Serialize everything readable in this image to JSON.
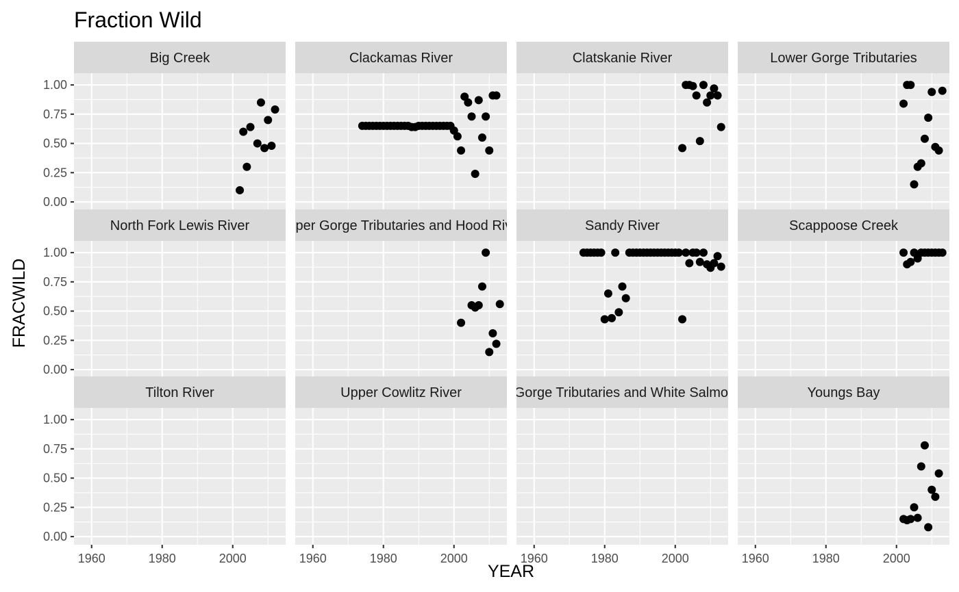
{
  "chart_data": {
    "type": "scatter",
    "title": "Fraction Wild",
    "xlabel": "YEAR",
    "ylabel": "FRACWILD",
    "xlim": [
      1955,
      2015
    ],
    "ylim": [
      0,
      1
    ],
    "x_ticks": [
      1960,
      1980,
      2000
    ],
    "y_ticks": [
      0.0,
      0.25,
      0.5,
      0.75,
      1.0
    ],
    "x_tick_labels": [
      "1960",
      "1980",
      "2000"
    ],
    "y_tick_labels": [
      "0.00",
      "0.25",
      "0.50",
      "0.75",
      "1.00"
    ],
    "grid": true,
    "facets": [
      {
        "name": "Big Creek",
        "x": [
          2002,
          2003,
          2004,
          2005,
          2007,
          2008,
          2009,
          2010,
          2011,
          2012
        ],
        "y": [
          0.1,
          0.6,
          0.3,
          0.64,
          0.5,
          0.85,
          0.46,
          0.7,
          0.48,
          0.79
        ]
      },
      {
        "name": "Clackamas River",
        "x": [
          1974,
          1975,
          1976,
          1977,
          1978,
          1979,
          1980,
          1981,
          1982,
          1983,
          1984,
          1985,
          1986,
          1987,
          1988,
          1989,
          1990,
          1991,
          1992,
          1993,
          1994,
          1995,
          1996,
          1997,
          1998,
          1999,
          2000,
          2001,
          2002,
          2003,
          2004,
          2005,
          2006,
          2007,
          2008,
          2009,
          2010,
          2011,
          2012
        ],
        "y": [
          0.65,
          0.65,
          0.65,
          0.65,
          0.65,
          0.65,
          0.65,
          0.65,
          0.65,
          0.65,
          0.65,
          0.65,
          0.65,
          0.65,
          0.64,
          0.64,
          0.65,
          0.65,
          0.65,
          0.65,
          0.65,
          0.65,
          0.65,
          0.65,
          0.65,
          0.65,
          0.61,
          0.56,
          0.44,
          0.9,
          0.85,
          0.73,
          0.24,
          0.87,
          0.55,
          0.73,
          0.44,
          0.91,
          0.91
        ]
      },
      {
        "name": "Clatskanie River",
        "x": [
          2002,
          2003,
          2004,
          2005,
          2006,
          2007,
          2008,
          2009,
          2010,
          2011,
          2012,
          2013
        ],
        "y": [
          0.46,
          1.0,
          1.0,
          0.99,
          0.91,
          0.52,
          1.0,
          0.85,
          0.91,
          0.97,
          0.91,
          0.64
        ]
      },
      {
        "name": "Lower Gorge Tributaries",
        "x": [
          2002,
          2003,
          2004,
          2005,
          2006,
          2007,
          2008,
          2009,
          2010,
          2011,
          2012,
          2013
        ],
        "y": [
          0.84,
          1.0,
          1.0,
          0.15,
          0.3,
          0.33,
          0.54,
          0.72,
          0.94,
          0.47,
          0.44,
          0.95
        ]
      },
      {
        "name": "North Fork Lewis River",
        "x": [],
        "y": []
      },
      {
        "name": "Upper Gorge Tributaries and Hood River",
        "x": [
          2002,
          2005,
          2006,
          2007,
          2008,
          2009,
          2010,
          2011,
          2012,
          2013
        ],
        "y": [
          0.4,
          0.55,
          0.53,
          0.55,
          0.71,
          1.0,
          0.15,
          0.31,
          0.22,
          0.56
        ]
      },
      {
        "name": "Sandy River",
        "x": [
          1974,
          1975,
          1976,
          1977,
          1978,
          1979,
          1980,
          1981,
          1982,
          1983,
          1984,
          1985,
          1986,
          1987,
          1988,
          1989,
          1990,
          1991,
          1992,
          1993,
          1994,
          1995,
          1996,
          1997,
          1998,
          1999,
          2000,
          2001,
          2002,
          2003,
          2004,
          2005,
          2006,
          2007,
          2008,
          2009,
          2010,
          2011,
          2012,
          2013
        ],
        "y": [
          1.0,
          1.0,
          1.0,
          1.0,
          1.0,
          1.0,
          0.43,
          0.65,
          0.44,
          1.0,
          0.49,
          0.71,
          0.61,
          1.0,
          1.0,
          1.0,
          1.0,
          1.0,
          1.0,
          1.0,
          1.0,
          1.0,
          1.0,
          1.0,
          1.0,
          1.0,
          1.0,
          1.0,
          0.43,
          1.0,
          0.91,
          1.0,
          1.0,
          0.92,
          1.0,
          0.9,
          0.87,
          0.91,
          0.97,
          0.88
        ]
      },
      {
        "name": "Scappoose Creek",
        "x": [
          2002,
          2003,
          2004,
          2005,
          2006,
          2007,
          2008,
          2009,
          2010,
          2011,
          2012,
          2013
        ],
        "y": [
          1.0,
          0.9,
          0.92,
          1.0,
          0.95,
          1.0,
          1.0,
          1.0,
          1.0,
          1.0,
          1.0,
          1.0
        ]
      },
      {
        "name": "Tilton River",
        "x": [],
        "y": []
      },
      {
        "name": "Upper Cowlitz River",
        "x": [],
        "y": []
      },
      {
        "name": "Upper Gorge Tributaries and White Salmon River",
        "x": [],
        "y": []
      },
      {
        "name": "Youngs Bay",
        "x": [
          2002,
          2003,
          2004,
          2005,
          2006,
          2007,
          2008,
          2009,
          2010,
          2011,
          2012
        ],
        "y": [
          0.15,
          0.14,
          0.15,
          0.25,
          0.16,
          0.6,
          0.78,
          0.08,
          0.4,
          0.34,
          0.54
        ]
      }
    ]
  }
}
